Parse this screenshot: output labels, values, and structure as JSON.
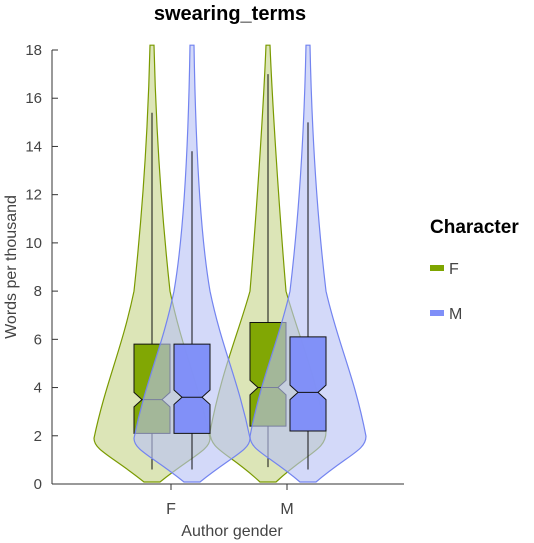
{
  "chart_data": {
    "type": "violin",
    "title": "swearing_terms",
    "xlabel": "Author gender",
    "ylabel": "Words per thousand",
    "categories": [
      "F",
      "M"
    ],
    "ylim": [
      0,
      18
    ],
    "yticks": [
      0,
      2,
      4,
      6,
      8,
      10,
      12,
      14,
      16,
      18
    ],
    "grid": false,
    "legend": {
      "title": "Character",
      "placement": "right",
      "entries": [
        "F",
        "M"
      ]
    },
    "series": [
      {
        "name": "F",
        "color": "#7a9a00",
        "fill": "#c7d58a",
        "box_fill": "#7ea500",
        "groups": [
          {
            "category": "F",
            "min": 0.6,
            "q1": 2.1,
            "median": 3.5,
            "q3": 5.8,
            "max": 15.4,
            "notch": [
              3.2,
              3.8
            ]
          },
          {
            "category": "M",
            "min": 0.7,
            "q1": 2.4,
            "median": 4.0,
            "q3": 6.7,
            "max": 17.0,
            "notch": [
              3.7,
              4.3
            ]
          }
        ]
      },
      {
        "name": "M",
        "color": "#7384f0",
        "fill": "#b8c2f5",
        "box_fill": "#7f8ff8",
        "groups": [
          {
            "category": "F",
            "min": 0.6,
            "q1": 2.1,
            "median": 3.6,
            "q3": 5.8,
            "max": 13.8,
            "notch": [
              3.3,
              3.9
            ]
          },
          {
            "category": "M",
            "min": 0.6,
            "q1": 2.2,
            "median": 3.8,
            "q3": 6.1,
            "max": 15.0,
            "notch": [
              3.5,
              4.1
            ]
          }
        ]
      }
    ]
  }
}
